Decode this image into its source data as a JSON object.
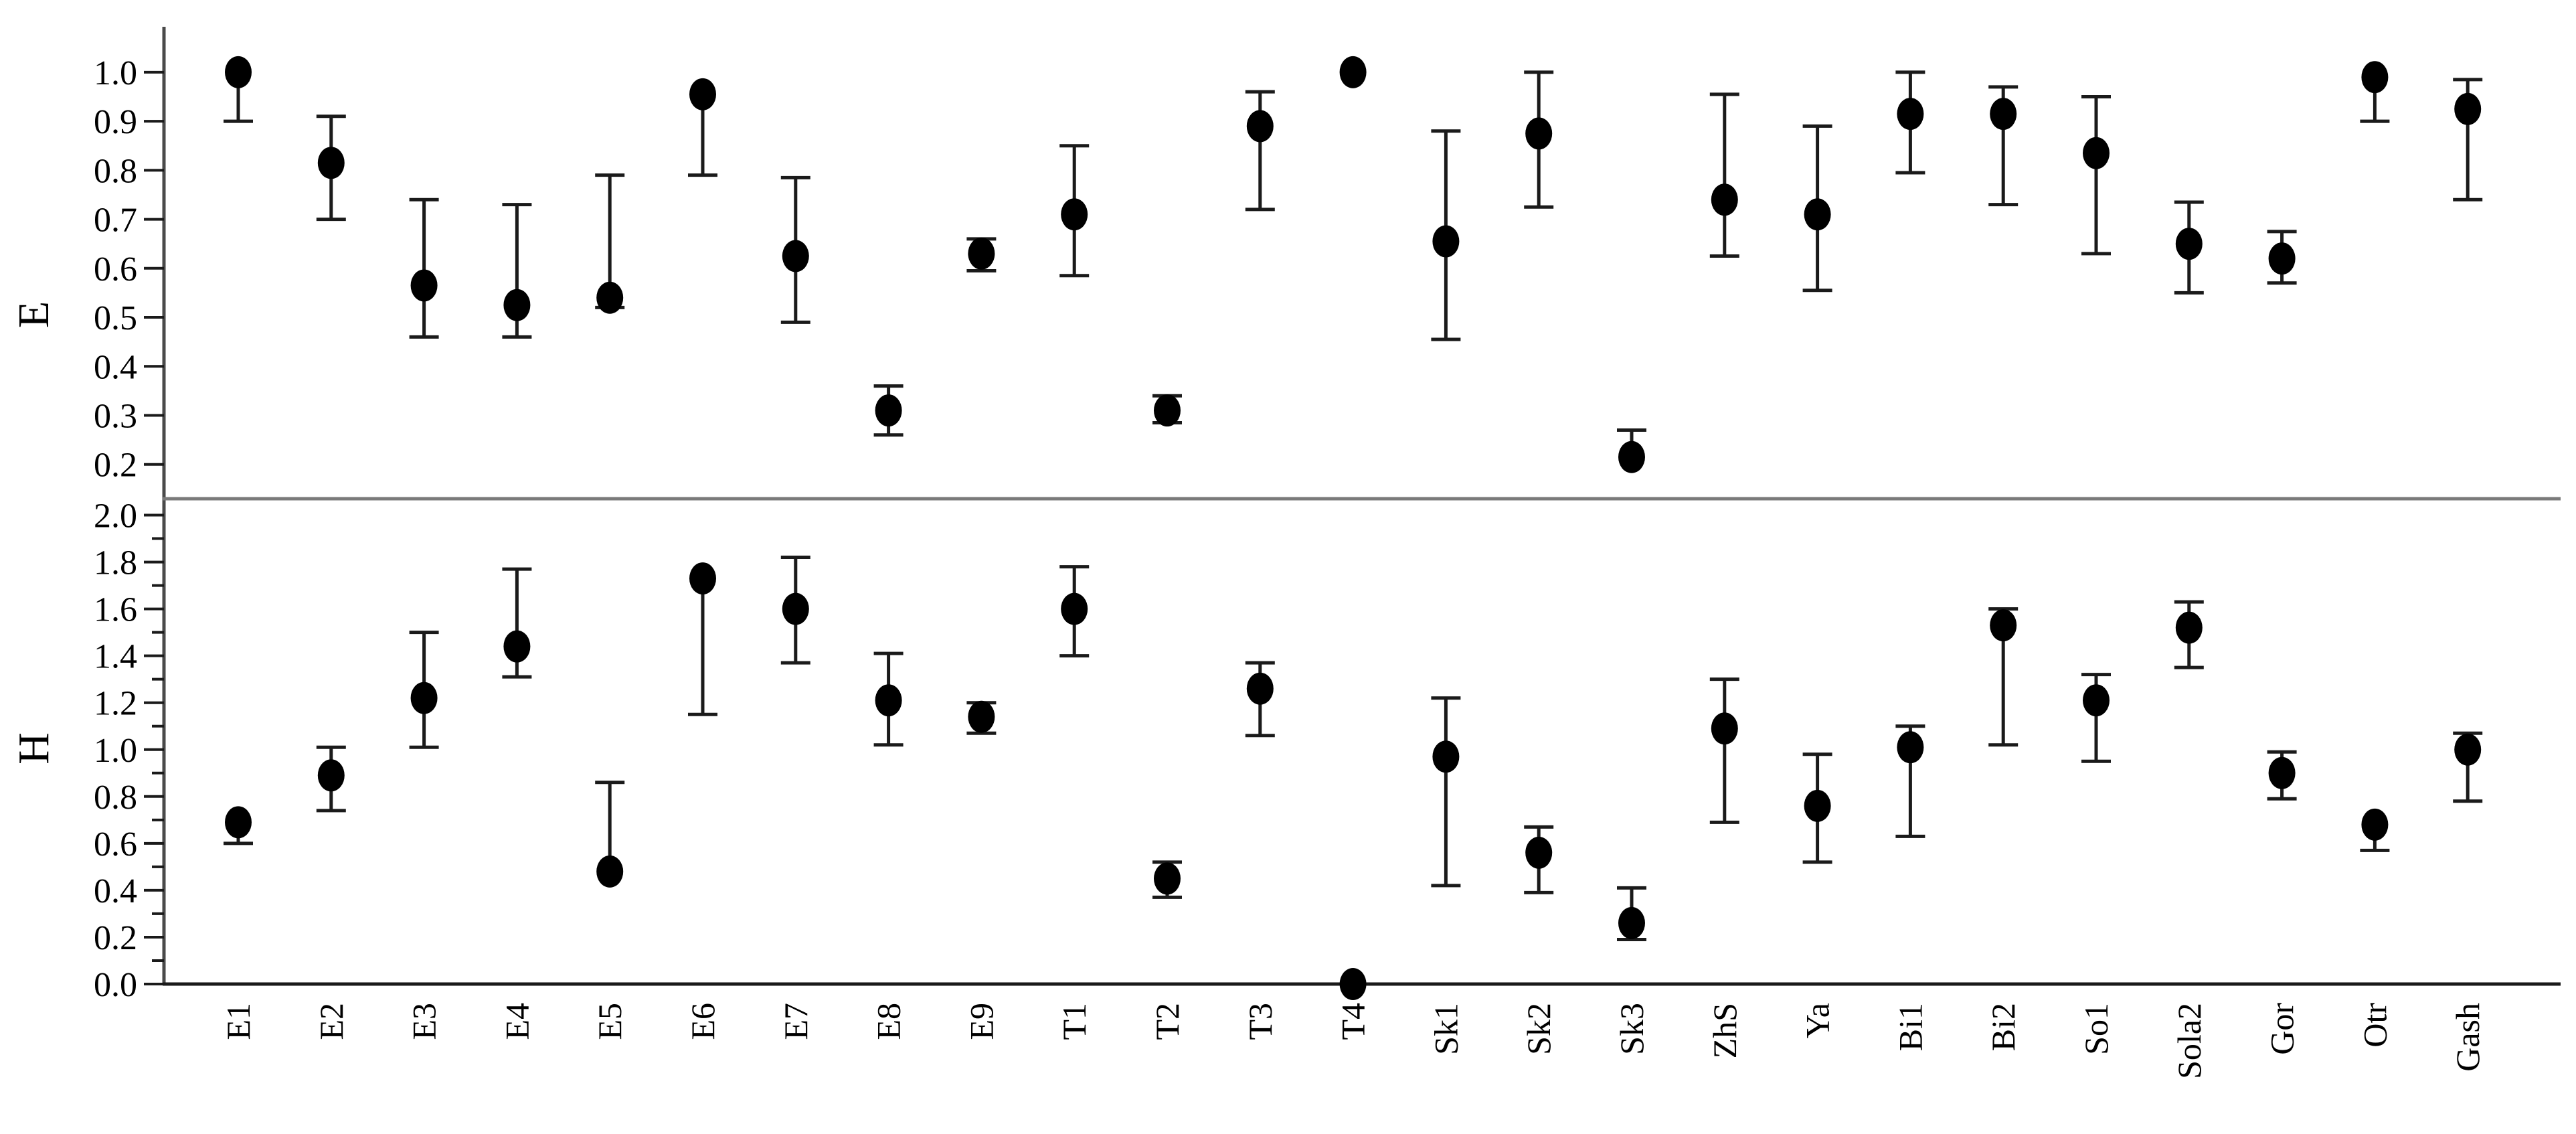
{
  "figure": {
    "background_color": "#ffffff",
    "marker_color": "#000000",
    "error_bar_color": "#1a1a1a",
    "axis_line_color": "#4a4a4a",
    "divider_line_color": "#7a7a7a",
    "x_axis_line_color": "#1a1a1a"
  },
  "chart_data": {
    "type": "scatter",
    "subtype": "dot-with-error-bars",
    "title": "",
    "xlabel": "",
    "grid": false,
    "legend_position": "none",
    "categories": [
      "E1",
      "E2",
      "E3",
      "E4",
      "E5",
      "E6",
      "E7",
      "E8",
      "E9",
      "T1",
      "T2",
      "T3",
      "T4",
      "Sk1",
      "Sk2",
      "Sk3",
      "ZhS",
      "Ya",
      "Bi1",
      "Bi2",
      "So1",
      "Sola2",
      "Gor",
      "Otr",
      "Gash"
    ],
    "panels": [
      {
        "ylabel": "E",
        "ylim": [
          0.13,
          1.12
        ],
        "ytick_labels": [
          "1.0",
          "0.9",
          "0.8",
          "0.7",
          "0.6",
          "0.5",
          "0.4",
          "0.3",
          "0.2"
        ],
        "ytick_values": [
          1.0,
          0.9,
          0.8,
          0.7,
          0.6,
          0.5,
          0.4,
          0.3,
          0.2
        ],
        "ytick_minor_values": [],
        "series": {
          "name": "E",
          "values": [
            1.0,
            0.815,
            0.565,
            0.525,
            0.54,
            0.955,
            0.625,
            0.31,
            0.63,
            0.71,
            0.31,
            0.89,
            1.0,
            0.655,
            0.875,
            0.215,
            0.74,
            0.71,
            0.915,
            0.915,
            0.835,
            0.65,
            0.62,
            0.99,
            0.925
          ],
          "lo": [
            0.9,
            0.7,
            0.46,
            0.46,
            0.52,
            0.79,
            0.49,
            0.26,
            0.595,
            0.585,
            0.285,
            0.72,
            1.0,
            0.455,
            0.725,
            0.215,
            0.625,
            0.555,
            0.795,
            0.73,
            0.63,
            0.55,
            0.57,
            0.9,
            0.74
          ],
          "hi": [
            1.0,
            0.91,
            0.74,
            0.73,
            0.79,
            0.955,
            0.785,
            0.36,
            0.66,
            0.85,
            0.34,
            0.96,
            1.0,
            0.88,
            1.0,
            0.27,
            0.955,
            0.89,
            1.0,
            0.97,
            0.95,
            0.735,
            0.675,
            0.99,
            0.985
          ]
        }
      },
      {
        "ylabel": "H",
        "ylim": [
          0.0,
          2.07
        ],
        "ytick_labels": [
          "2.0",
          "1.8",
          "1.6",
          "1.4",
          "1.2",
          "1.0",
          "0.8",
          "0.6",
          "0.4",
          "0.2",
          "0.0"
        ],
        "ytick_values": [
          2.0,
          1.8,
          1.6,
          1.4,
          1.2,
          1.0,
          0.8,
          0.6,
          0.4,
          0.2,
          0.0
        ],
        "ytick_minor_values": [
          1.9,
          1.7,
          1.5,
          1.3,
          1.1,
          0.9,
          0.7,
          0.5,
          0.3,
          0.1
        ],
        "series": {
          "name": "H",
          "values": [
            0.69,
            0.89,
            1.22,
            1.44,
            0.48,
            1.73,
            1.6,
            1.21,
            1.14,
            1.6,
            0.45,
            1.26,
            0.0,
            0.97,
            0.56,
            0.26,
            1.09,
            0.76,
            1.01,
            1.53,
            1.21,
            1.52,
            0.9,
            0.68,
            1.0
          ],
          "lo": [
            0.6,
            0.74,
            1.01,
            1.31,
            0.48,
            1.15,
            1.37,
            1.02,
            1.07,
            1.4,
            0.37,
            1.06,
            0.0,
            0.42,
            0.39,
            0.19,
            0.69,
            0.52,
            0.63,
            1.02,
            0.95,
            1.35,
            0.79,
            0.57,
            0.78
          ],
          "hi": [
            0.69,
            1.01,
            1.5,
            1.77,
            0.86,
            1.73,
            1.82,
            1.41,
            1.2,
            1.78,
            0.52,
            1.37,
            0.0,
            1.22,
            0.67,
            0.41,
            1.3,
            0.98,
            1.1,
            1.6,
            1.32,
            1.63,
            0.99,
            0.68,
            1.07
          ]
        }
      }
    ]
  }
}
